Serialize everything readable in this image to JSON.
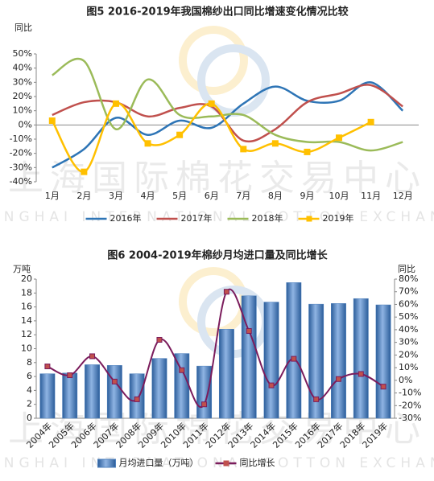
{
  "watermark": {
    "cn": "上海国际棉花交易中心",
    "en": "SHANGHAI INTERNATIONAL COTTON EXCHANGE"
  },
  "chart_data": [
    {
      "type": "line",
      "title": "图5 2016-2019年我国棉纱出口同比增速变化情况比较",
      "y_label": "同比",
      "categories": [
        "1月",
        "2月",
        "3月",
        "4月",
        "5月",
        "6月",
        "7月",
        "8月",
        "9月",
        "10月",
        "11月",
        "12月"
      ],
      "series": [
        {
          "name": "2016年",
          "color": "#2e75b6",
          "values": [
            -30,
            -17,
            5,
            -7,
            3,
            -2,
            15,
            27,
            17,
            17,
            30,
            10
          ]
        },
        {
          "name": "2017年",
          "color": "#c0504d",
          "values": [
            7,
            16,
            16,
            6,
            12,
            13,
            -11,
            -3,
            16,
            22,
            28,
            13
          ]
        },
        {
          "name": "2018年",
          "color": "#9bbb59",
          "values": [
            35,
            45,
            -3,
            32,
            7,
            6,
            7,
            -7,
            -12,
            -12,
            -18,
            -12
          ]
        },
        {
          "name": "2019年",
          "color": "#ffc000",
          "marker": "square",
          "values": [
            3,
            -33,
            15,
            -13,
            -7,
            15,
            -17,
            -13,
            -19,
            -9,
            2,
            null
          ]
        }
      ],
      "ylim": [
        -40,
        50
      ],
      "yticks": [
        {
          "value": -40,
          "label": "-40%"
        },
        {
          "value": -30,
          "label": "-30%"
        },
        {
          "value": -20,
          "label": "-20%"
        },
        {
          "value": -10,
          "label": "-10%"
        },
        {
          "value": 0,
          "label": "0%"
        },
        {
          "value": 10,
          "label": "10%"
        },
        {
          "value": 20,
          "label": "20%"
        },
        {
          "value": 30,
          "label": "30%"
        },
        {
          "value": 40,
          "label": "40%"
        },
        {
          "value": 50,
          "label": "50%"
        }
      ],
      "smooth": true,
      "legend": "bottom"
    },
    {
      "type": "bar-line",
      "title": "图6 2004-2019年棉纱月均进口量及同比增长",
      "y_label": "万吨",
      "y2_label": "同比",
      "categories": [
        "2004年",
        "2005年",
        "2006年",
        "2007年",
        "2008年",
        "2009年",
        "2010年",
        "2011年",
        "2012年",
        "2013年",
        "2014年",
        "2015年",
        "2016年",
        "2017年",
        "2018年",
        "2019年"
      ],
      "series": [
        {
          "name": "月均进口量（万吨）",
          "color": "#4f81bd",
          "values": [
            6.4,
            6.5,
            7.7,
            7.6,
            6.4,
            8.6,
            9.3,
            7.5,
            12.8,
            17.6,
            16.7,
            19.5,
            16.4,
            16.5,
            17.2,
            16.3
          ]
        },
        {
          "name": "同比增长",
          "color": "#7b1c5c",
          "axis": "y2",
          "values": [
            11,
            4,
            19,
            -1,
            -15,
            32,
            8,
            -19,
            70,
            39,
            -4,
            17,
            -15,
            1,
            5,
            -5
          ]
        }
      ],
      "ylim": [
        0,
        20
      ],
      "yticks": [
        0,
        2,
        4,
        6,
        8,
        10,
        12,
        14,
        16,
        18,
        20
      ],
      "y2lim": [
        -30,
        80
      ],
      "y2ticks": [
        {
          "value": -30,
          "label": "-30%"
        },
        {
          "value": -20,
          "label": "-20%"
        },
        {
          "value": -10,
          "label": "-10%"
        },
        {
          "value": 0,
          "label": "0%"
        },
        {
          "value": 10,
          "label": "10%"
        },
        {
          "value": 20,
          "label": "20%"
        },
        {
          "value": 30,
          "label": "30%"
        },
        {
          "value": 40,
          "label": "40%"
        },
        {
          "value": 50,
          "label": "50%"
        },
        {
          "value": 60,
          "label": "60%"
        },
        {
          "value": 70,
          "label": "70%"
        },
        {
          "value": 80,
          "label": "80%"
        }
      ],
      "smooth": true,
      "legend": "bottom"
    }
  ]
}
